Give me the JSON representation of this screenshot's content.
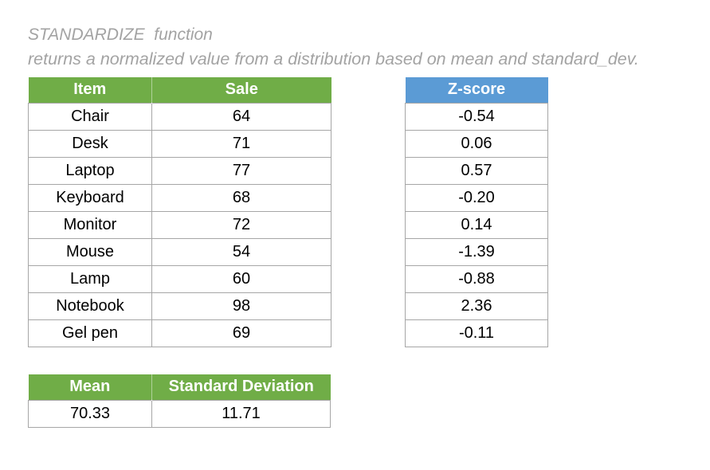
{
  "page": {
    "title": "STANDARDIZE  function",
    "subtitle": "returns a normalized value from a distribution based on mean and standard_dev."
  },
  "colors": {
    "header_green": "#70AD47",
    "header_blue": "#5B9BD5",
    "border_gray": "#A6A6A6",
    "title_gray": "#A3A3A3"
  },
  "items_table": {
    "headers": {
      "item": "Item",
      "sale": "Sale"
    },
    "rows": [
      {
        "item": "Chair",
        "sale": "64"
      },
      {
        "item": "Desk",
        "sale": "71"
      },
      {
        "item": "Laptop",
        "sale": "77"
      },
      {
        "item": "Keyboard",
        "sale": "68"
      },
      {
        "item": "Monitor",
        "sale": "72"
      },
      {
        "item": "Mouse",
        "sale": "54"
      },
      {
        "item": "Lamp",
        "sale": "60"
      },
      {
        "item": "Notebook",
        "sale": "98"
      },
      {
        "item": "Gel pen",
        "sale": "69"
      }
    ]
  },
  "zscore_table": {
    "header": "Z-score",
    "values": [
      "-0.54",
      "0.06",
      "0.57",
      "-0.20",
      "0.14",
      "-1.39",
      "-0.88",
      "2.36",
      "-0.11"
    ]
  },
  "stats_table": {
    "headers": {
      "mean": "Mean",
      "std": "Standard Deviation"
    },
    "values": {
      "mean": "70.33",
      "std": "11.71"
    }
  }
}
